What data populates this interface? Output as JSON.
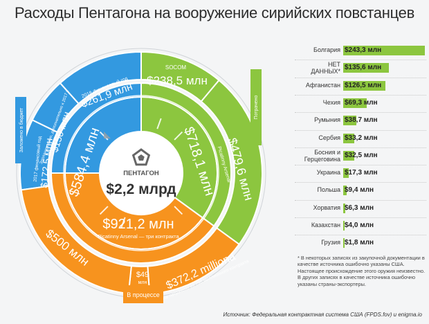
{
  "title": "Расходы Пентагона на вооружение сирийских повстанцев",
  "center": {
    "label": "ПЕНТАГОН",
    "value": "$2,2 млрд"
  },
  "colors": {
    "blue": "#3399e0",
    "green": "#8cc63f",
    "orange": "#f7931e",
    "bar": "#8cc63f"
  },
  "icons": {
    "center": "pentagon-icon"
  },
  "ring_labels": {
    "budget": "Заложено в бюджет",
    "delivered": "Потрачено",
    "in_process": "В процессе"
  },
  "inner": {
    "blue": {
      "value": "$584,4 млн"
    },
    "green": {
      "value": "$718,1 млн"
    },
    "orange": {
      "value": "$921,2 млн",
      "sub": "Picatinny Arsenal — три контракта"
    }
  },
  "outer": {
    "fy2018": {
      "value": "$261,9 млн",
      "caption": "2018 финансовый год"
    },
    "fy2017_note": {
      "value": "$150 млн",
      "caption": "Запланировано, дополнительно к 2017 г."
    },
    "fy2017": {
      "value": "$172,5 млн",
      "caption": "2017 финансовый год"
    },
    "socom": {
      "value": "$238,5 млн",
      "caption": "SOCOM"
    },
    "picatinny": {
      "value": "$479,6 млн",
      "caption": "Picatinny Arsenal"
    },
    "o500": {
      "value": "$500 млн"
    },
    "o49": {
      "value": "$49",
      "unit": "млн"
    },
    "o372": {
      "value": "$372,2 milliona",
      "caption": "Не потрачено из 798 миллионного контракта"
    }
  },
  "chart_data": {
    "type": "bar",
    "categories": [
      "Болгария",
      "НЕТ ДАННЫХ*",
      "Афганистан",
      "Чехия",
      "Румыния",
      "Сербия",
      "Босния и Герцеговина",
      "Украина",
      "Польша",
      "Хорватия",
      "Казахстан",
      "Грузия"
    ],
    "values": [
      243.3,
      135.6,
      126.5,
      69.3,
      38.7,
      33.2,
      32.5,
      17.3,
      9.4,
      6.3,
      4.0,
      1.8
    ],
    "labels": [
      "$243,3 млн",
      "$135,6 млн",
      "$126,5 млн",
      "$69,3 млн",
      "$38,7 млн",
      "$33,2 млн",
      "$32,5 млн",
      "$17,3 млн",
      "$9,4 млн",
      "$6,3 млн",
      "$4,0 млн",
      "$1,8 млн"
    ],
    "ylabel": "",
    "xlabel": ""
  },
  "footnote": "* В некоторых записях из закупочной документации в качестве источника ошибочно указаны США. Настоящее происхождение этого оружия неизвестно. В других записях в качестве источника ошибочно указаны страны-экспортеры.",
  "source": "Источник: Федеральная контрактная система США (FPDS.fov) и enigma.io"
}
